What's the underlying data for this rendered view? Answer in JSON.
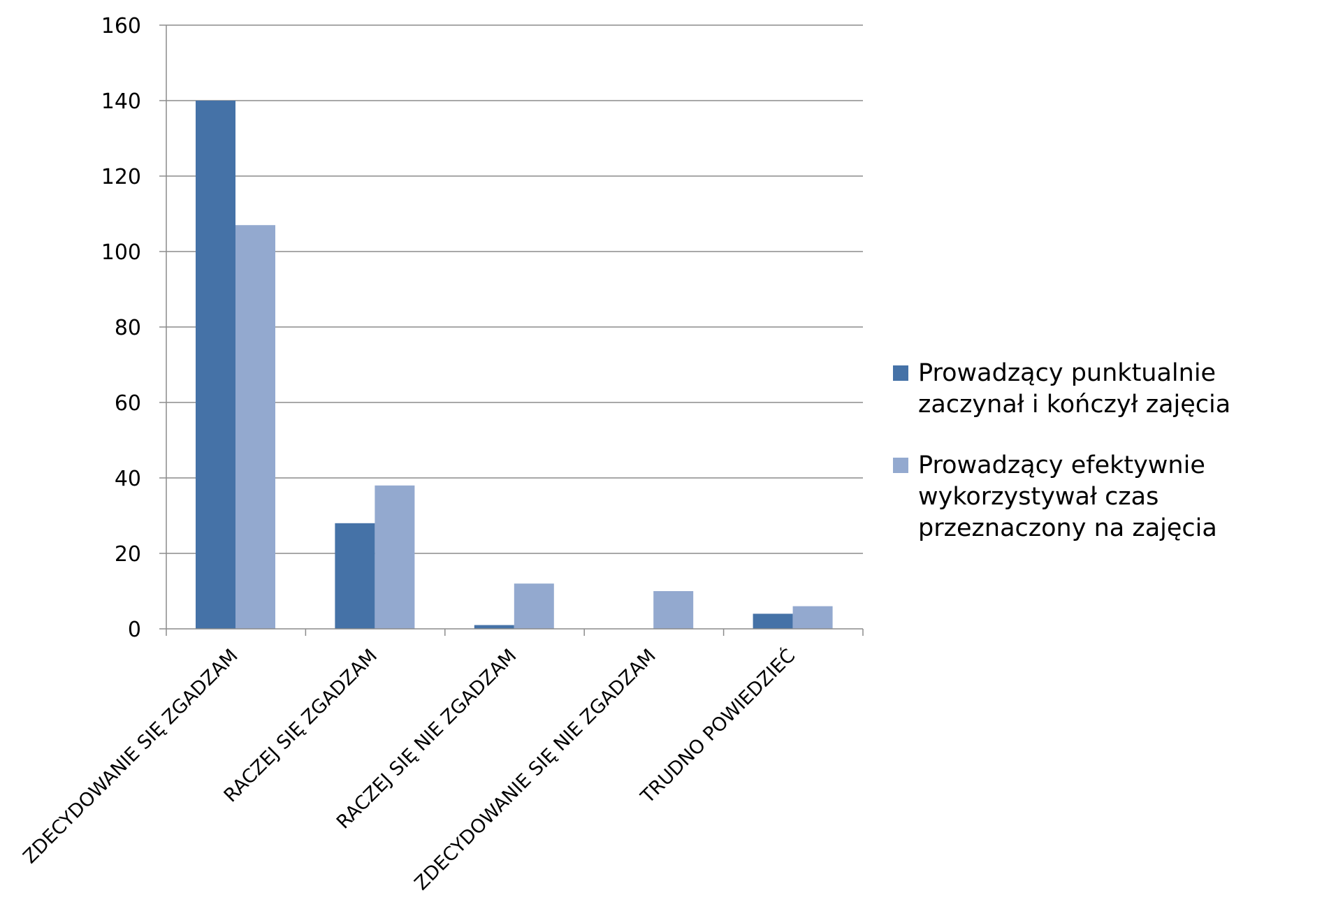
{
  "chart_data": {
    "type": "bar",
    "categories": [
      "ZDECYDOWANIE SIĘ ZGADZAM",
      "RACZEJ SIĘ ZGADZAM",
      "RACZEJ SIĘ NIE ZGADZAM",
      "ZDECYDOWANIE SIĘ NIE ZGADZAM",
      "TRUDNO POWIEDZIEĆ"
    ],
    "series": [
      {
        "name": "Prowadzący punktualnie zaczynał i kończył zajęcia",
        "color": "#4572A7",
        "values": [
          140,
          28,
          1,
          0,
          4
        ]
      },
      {
        "name": "Prowadzący efektywnie wykorzystywał czas przeznaczony na zajęcia",
        "color": "#93A9CF",
        "values": [
          107,
          38,
          12,
          10,
          6
        ]
      }
    ],
    "yticks": [
      0,
      20,
      40,
      60,
      80,
      100,
      120,
      140,
      160
    ],
    "ylim": [
      0,
      160
    ],
    "grid": true,
    "legend_position": "right"
  }
}
